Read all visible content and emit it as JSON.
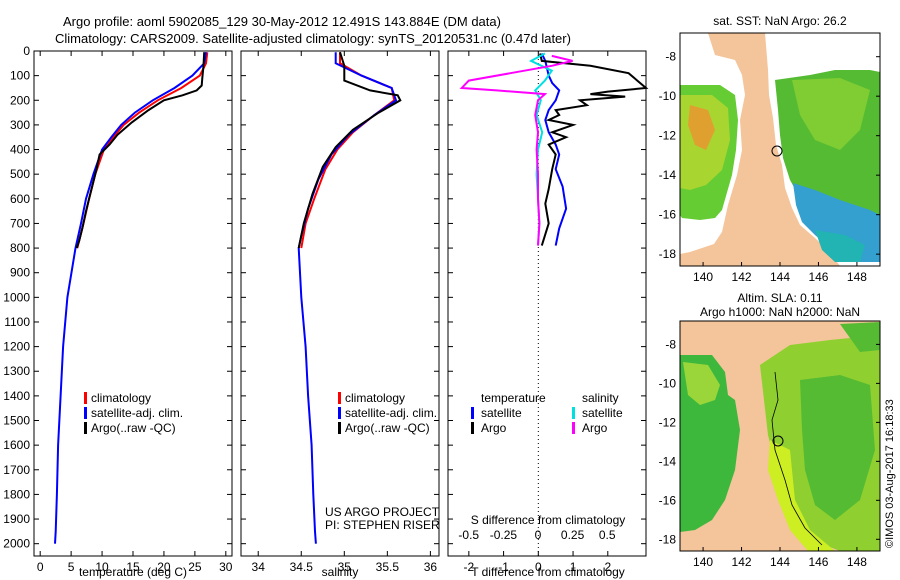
{
  "header": {
    "line1": "Argo profile: aoml 5902085_129 30-May-2012 12.491S 143.884E (DM data)",
    "line2": "Climatology: CARS2009. Satellite-adjusted climatology: synTS_20120531.nc (0.47d later)"
  },
  "colors": {
    "clim": "#ff0000",
    "sat": "#0000ff",
    "argo": "#000000",
    "sat_s": "#00e0e0",
    "argo_s": "#ff00ff",
    "land": "#f4c49a"
  },
  "chart_data": [
    {
      "id": "temperature",
      "type": "line",
      "xlabel": "temperature (deg C)",
      "xlim": [
        -1,
        31
      ],
      "xticks": [
        "0",
        "5",
        "10",
        "15",
        "20",
        "25",
        "30"
      ],
      "xtick_values": [
        0,
        5,
        10,
        15,
        20,
        25,
        30
      ],
      "ylim": [
        0,
        2050
      ],
      "yticks": [
        "0",
        "100",
        "200",
        "300",
        "400",
        "500",
        "600",
        "700",
        "800",
        "900",
        "1000",
        "1100",
        "1200",
        "1300",
        "1400",
        "1500",
        "1600",
        "1700",
        "1800",
        "1900",
        "2000"
      ],
      "ytick_values": [
        0,
        100,
        200,
        300,
        400,
        500,
        600,
        700,
        800,
        900,
        1000,
        1100,
        1200,
        1300,
        1400,
        1500,
        1600,
        1700,
        1800,
        1900,
        2000
      ],
      "legend": [
        "climatology",
        "satellite-adj. clim.",
        "Argo(..raw -QC)"
      ],
      "series": [
        {
          "name": "climatology",
          "color": "#ff0000",
          "points": [
            [
              27,
              5
            ],
            [
              26.8,
              50
            ],
            [
              25.8,
              100
            ],
            [
              22.8,
              150
            ],
            [
              19,
              200
            ],
            [
              16,
              250
            ],
            [
              13.5,
              300
            ],
            [
              11.8,
              350
            ],
            [
              10.3,
              400
            ],
            [
              8.9,
              500
            ],
            [
              7.9,
              600
            ],
            [
              7.0,
              700
            ],
            [
              6.0,
              800
            ]
          ]
        },
        {
          "name": "satellite-adj. clim.",
          "color": "#0000ff",
          "points": [
            [
              26.8,
              5
            ],
            [
              26.5,
              50
            ],
            [
              24.6,
              100
            ],
            [
              21.7,
              150
            ],
            [
              18.2,
              200
            ],
            [
              15.3,
              250
            ],
            [
              13.1,
              300
            ],
            [
              11.5,
              350
            ],
            [
              10.0,
              400
            ],
            [
              8.6,
              500
            ],
            [
              7.4,
              600
            ],
            [
              6.6,
              700
            ],
            [
              5.7,
              800
            ],
            [
              4.4,
              1000
            ],
            [
              3.7,
              1200
            ],
            [
              3.3,
              1400
            ],
            [
              2.9,
              1600
            ],
            [
              2.7,
              1800
            ],
            [
              2.5,
              1950
            ],
            [
              2.4,
              2000
            ]
          ]
        },
        {
          "name": "Argo(..raw -QC)",
          "color": "#000000",
          "points": [
            [
              26.5,
              5
            ],
            [
              26.4,
              60
            ],
            [
              26.2,
              110
            ],
            [
              26.1,
              140
            ],
            [
              25.3,
              160
            ],
            [
              23,
              180
            ],
            [
              20,
              200
            ],
            [
              17.5,
              240
            ],
            [
              14.8,
              290
            ],
            [
              12.5,
              340
            ],
            [
              11.2,
              380
            ],
            [
              9.6,
              420
            ],
            [
              9.1,
              480
            ],
            [
              8.3,
              560
            ],
            [
              7.4,
              650
            ],
            [
              6.8,
              720
            ],
            [
              6.3,
              770
            ],
            [
              5.9,
              800
            ]
          ]
        }
      ]
    },
    {
      "id": "salinity",
      "type": "line",
      "xlabel": "salinity",
      "xlim": [
        33.8,
        36.1
      ],
      "xticks": [
        "34",
        "34.5",
        "35",
        "35.5",
        "36"
      ],
      "xtick_values": [
        34,
        34.5,
        35,
        35.5,
        36
      ],
      "ylim": [
        0,
        2050
      ],
      "legend": [
        "climatology",
        "satellite-adj. clim.",
        "Argo(..raw -QC)"
      ],
      "annotation": [
        "US ARGO PROJECT",
        "PI: STEPHEN RISER"
      ],
      "series": [
        {
          "name": "climatology",
          "color": "#ff0000",
          "points": [
            [
              34.95,
              5
            ],
            [
              34.95,
              50
            ],
            [
              35.2,
              100
            ],
            [
              35.55,
              150
            ],
            [
              35.58,
              200
            ],
            [
              35.35,
              260
            ],
            [
              35.1,
              330
            ],
            [
              34.92,
              400
            ],
            [
              34.78,
              480
            ],
            [
              34.65,
              600
            ],
            [
              34.55,
              700
            ],
            [
              34.5,
              800
            ]
          ]
        },
        {
          "name": "satellite-adj. clim.",
          "color": "#0000ff",
          "points": [
            [
              34.9,
              5
            ],
            [
              34.9,
              50
            ],
            [
              35.2,
              100
            ],
            [
              35.55,
              150
            ],
            [
              35.6,
              200
            ],
            [
              35.35,
              260
            ],
            [
              35.05,
              340
            ],
            [
              34.85,
              420
            ],
            [
              34.7,
              520
            ],
            [
              34.58,
              640
            ],
            [
              34.5,
              750
            ],
            [
              34.47,
              800
            ],
            [
              34.5,
              1000
            ],
            [
              34.55,
              1200
            ],
            [
              34.58,
              1400
            ],
            [
              34.62,
              1600
            ],
            [
              34.64,
              1800
            ],
            [
              34.66,
              1950
            ],
            [
              34.67,
              2000
            ]
          ]
        },
        {
          "name": "Argo(..raw -QC)",
          "color": "#000000",
          "points": [
            [
              34.95,
              5
            ],
            [
              35.0,
              60
            ],
            [
              35.0,
              120
            ],
            [
              35.3,
              160
            ],
            [
              35.62,
              180
            ],
            [
              35.65,
              200
            ],
            [
              35.4,
              250
            ],
            [
              35.1,
              320
            ],
            [
              34.9,
              390
            ],
            [
              34.75,
              470
            ],
            [
              34.63,
              580
            ],
            [
              34.53,
              700
            ],
            [
              34.47,
              800
            ]
          ]
        }
      ]
    },
    {
      "id": "difference",
      "type": "line",
      "xlabel": "T difference from climatology",
      "xlabel_top": "S difference from climatology",
      "xlim": [
        -2.6,
        3.1
      ],
      "xticks": [
        "-2",
        "-1",
        "0",
        "1",
        "2"
      ],
      "xtick_values": [
        -2,
        -1,
        0,
        1,
        2
      ],
      "xticks_top": [
        "-0.5",
        "-0.25",
        "0",
        "0.25",
        "0.5"
      ],
      "xtick_values_top": [
        -0.5,
        -0.25,
        0,
        0.25,
        0.5
      ],
      "ylim": [
        0,
        2050
      ],
      "legend_headers": [
        "temperature",
        "salinity"
      ],
      "legend": [
        "satellite",
        "Argo",
        "satellite",
        "Argo"
      ],
      "series": [
        {
          "name": "T satellite",
          "color": "#0000ff",
          "points": [
            [
              0.1,
              10
            ],
            [
              0.2,
              40
            ],
            [
              0.25,
              70
            ],
            [
              0.3,
              100
            ],
            [
              0.4,
              130
            ],
            [
              0.6,
              160
            ],
            [
              0.5,
              200
            ],
            [
              0.3,
              240
            ],
            [
              0.2,
              280
            ],
            [
              0.3,
              330
            ],
            [
              0.5,
              380
            ],
            [
              0.6,
              420
            ],
            [
              0.5,
              480
            ],
            [
              0.7,
              550
            ],
            [
              0.8,
              640
            ],
            [
              0.6,
              720
            ],
            [
              0.5,
              790
            ]
          ]
        },
        {
          "name": "T Argo",
          "color": "#000000",
          "points": [
            [
              0.05,
              10
            ],
            [
              0.1,
              40
            ],
            [
              1.5,
              60
            ],
            [
              2.6,
              90
            ],
            [
              3.1,
              150
            ],
            [
              2.0,
              165
            ],
            [
              1.5,
              175
            ],
            [
              2.5,
              185
            ],
            [
              1.2,
              200
            ],
            [
              1.4,
              220
            ],
            [
              0.5,
              240
            ],
            [
              0.6,
              260
            ],
            [
              0.3,
              280
            ],
            [
              1.0,
              300
            ],
            [
              0.4,
              330
            ],
            [
              0.8,
              350
            ],
            [
              0.3,
              380
            ],
            [
              0.5,
              420
            ],
            [
              0.4,
              480
            ],
            [
              0.3,
              560
            ],
            [
              0.2,
              620
            ],
            [
              0.3,
              700
            ],
            [
              0.1,
              790
            ]
          ]
        },
        {
          "name": "S satellite",
          "color": "#00e0e0",
          "points": [
            [
              0.05,
              10
            ],
            [
              -0.05,
              40
            ],
            [
              0.1,
              80
            ],
            [
              0.05,
              120
            ],
            [
              -0.02,
              160
            ],
            [
              0.02,
              200
            ],
            [
              -0.01,
              260
            ],
            [
              0.03,
              330
            ],
            [
              0.0,
              400
            ],
            [
              -0.01,
              500
            ],
            [
              0.0,
              600
            ],
            [
              0.01,
              700
            ],
            [
              0.0,
              790
            ]
          ]
        },
        {
          "name": "S Argo",
          "color": "#ff00ff",
          "points": [
            [
              0.1,
              20
            ],
            [
              0.25,
              40
            ],
            [
              0.1,
              60
            ],
            [
              -0.2,
              90
            ],
            [
              -0.5,
              120
            ],
            [
              -0.55,
              150
            ],
            [
              -0.3,
              160
            ],
            [
              0.05,
              175
            ],
            [
              0.0,
              200
            ],
            [
              -0.02,
              260
            ],
            [
              0.0,
              330
            ],
            [
              -0.01,
              400
            ],
            [
              0.0,
              500
            ],
            [
              0.0,
              600
            ],
            [
              0.01,
              700
            ],
            [
              0.0,
              790
            ]
          ]
        }
      ]
    },
    {
      "id": "sst_map",
      "type": "heatmap",
      "title": "sat. SST: NaN Argo: 26.2",
      "xticks": [
        "140",
        "142",
        "144",
        "146",
        "148"
      ],
      "xtick_values": [
        140,
        142,
        144,
        146,
        148
      ],
      "yticks": [
        "-8",
        "-10",
        "-12",
        "-14",
        "-16",
        "-18"
      ],
      "ytick_values": [
        -8,
        -10,
        -12,
        -14,
        -16,
        -18
      ],
      "xlim": [
        138.8,
        149.2
      ],
      "ylim": [
        -18.6,
        -6.8
      ],
      "argo_position": [
        143.884,
        -12.491
      ]
    },
    {
      "id": "sla_map",
      "type": "heatmap",
      "title": [
        "Altim. SLA: 0.11",
        "Argo h1000: NaN h2000: NaN"
      ],
      "xticks": [
        "140",
        "142",
        "144",
        "146",
        "148"
      ],
      "xtick_values": [
        140,
        142,
        144,
        146,
        148
      ],
      "yticks": [
        "-8",
        "-10",
        "-12",
        "-14",
        "-16",
        "-18"
      ],
      "ytick_values": [
        -8,
        -10,
        -12,
        -14,
        -16,
        -18
      ],
      "xlim": [
        138.8,
        149.2
      ],
      "ylim": [
        -18.6,
        -6.8
      ],
      "argo_position": [
        143.884,
        -12.491
      ]
    }
  ],
  "credit": "©IMOS 03-Aug-2017 16:18:33"
}
